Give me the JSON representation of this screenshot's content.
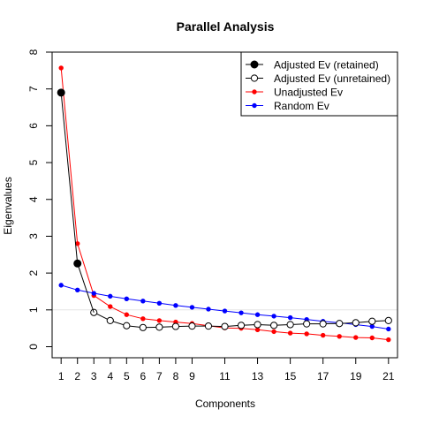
{
  "chart_data": {
    "type": "line",
    "title": "Parallel Analysis",
    "xlabel": "Components",
    "ylabel": "Eigenvalues",
    "xlim": [
      0.45,
      21.55
    ],
    "ylim": [
      -0.3,
      8.0
    ],
    "x_ticks": [
      1,
      2,
      3,
      4,
      5,
      6,
      7,
      8,
      9,
      11,
      13,
      15,
      17,
      19,
      21
    ],
    "y_ticks": [
      0,
      1,
      2,
      3,
      4,
      5,
      6,
      7,
      8
    ],
    "reference_line": 1,
    "legend_position": "top-right",
    "x": [
      1,
      2,
      3,
      4,
      5,
      6,
      7,
      8,
      9,
      10,
      11,
      12,
      13,
      14,
      15,
      16,
      17,
      18,
      19,
      20,
      21
    ],
    "series": [
      {
        "name": "Unadjusted Ev",
        "color": "#ff0000",
        "marker": "small-filled",
        "values": [
          7.57,
          2.8,
          1.39,
          1.09,
          0.87,
          0.76,
          0.71,
          0.67,
          0.63,
          0.57,
          0.51,
          0.5,
          0.46,
          0.41,
          0.37,
          0.35,
          0.31,
          0.28,
          0.25,
          0.24,
          0.19
        ]
      },
      {
        "name": "Random Ev",
        "color": "#0000ff",
        "marker": "small-filled",
        "values": [
          1.67,
          1.54,
          1.45,
          1.37,
          1.3,
          1.24,
          1.18,
          1.12,
          1.07,
          1.02,
          0.97,
          0.92,
          0.87,
          0.83,
          0.79,
          0.74,
          0.69,
          0.65,
          0.6,
          0.55,
          0.48
        ]
      },
      {
        "name": "Adjusted Ev (unretained)",
        "color": "#000000",
        "marker": "open-circle",
        "values": [
          null,
          null,
          0.93,
          0.71,
          0.57,
          0.52,
          0.53,
          0.55,
          0.56,
          0.56,
          0.55,
          0.58,
          0.6,
          0.58,
          0.6,
          0.62,
          0.62,
          0.63,
          0.65,
          0.69,
          0.71
        ]
      },
      {
        "name": "Adjusted Ev (retained)",
        "color": "#000000",
        "marker": "large-filled",
        "values": [
          6.9,
          2.26,
          null,
          null,
          null,
          null,
          null,
          null,
          null,
          null,
          null,
          null,
          null,
          null,
          null,
          null,
          null,
          null,
          null,
          null,
          null
        ]
      }
    ],
    "legend": [
      {
        "label": "Adjusted Ev (retained)",
        "color": "#000000",
        "marker": "large-filled"
      },
      {
        "label": "Adjusted Ev (unretained)",
        "color": "#000000",
        "marker": "open-circle"
      },
      {
        "label": "Unadjusted Ev",
        "color": "#ff0000",
        "marker": "small-filled"
      },
      {
        "label": "Random Ev",
        "color": "#0000ff",
        "marker": "small-filled"
      }
    ]
  }
}
